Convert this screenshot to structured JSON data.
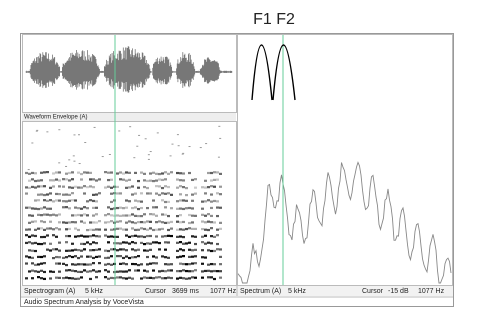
{
  "title": "F1 F2",
  "waveform": {
    "label": "Waveform Envelope (A)"
  },
  "status": {
    "spectrogram": {
      "label": "Spectrogram (A)",
      "range": "5 kHz",
      "cursor_label": "Cursor",
      "time": "3699 ms",
      "frequency": "1077 Hz"
    },
    "spectrum": {
      "label": "Spectrum (A)",
      "range": "5 kHz",
      "cursor_label": "Cursor",
      "level": "-15 dB",
      "frequency": "1077 Hz"
    }
  },
  "footer": "Audio Spectrum Analysis by VoceVista"
}
